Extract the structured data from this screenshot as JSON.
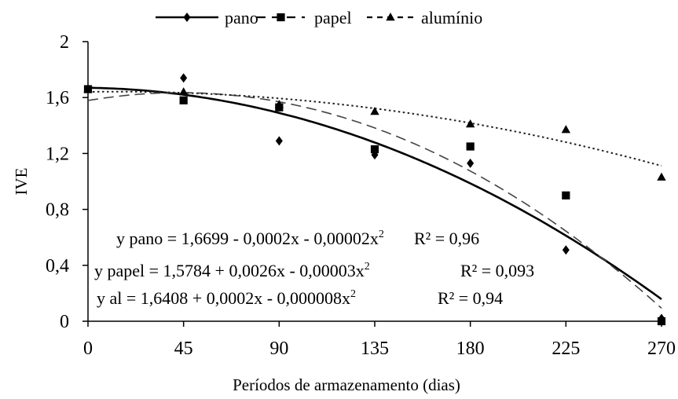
{
  "chart_data": {
    "type": "scatter",
    "xlabel": "Períodos de armazenamento (dias)",
    "ylabel": "IVE",
    "xlim": [
      0,
      270
    ],
    "ylim": [
      0,
      2
    ],
    "x_ticks": [
      0,
      45,
      90,
      135,
      180,
      225,
      270
    ],
    "y_ticks": [
      0,
      0.4,
      0.8,
      1.2,
      1.6,
      2
    ],
    "x_tick_labels": [
      "0",
      "45",
      "90",
      "135",
      "180",
      "225",
      "270"
    ],
    "y_tick_labels": [
      "0",
      "0,4",
      "0,8",
      "1,2",
      "1,6",
      "2"
    ],
    "legend_position": "top",
    "grid": false,
    "x": [
      0,
      45,
      90,
      135,
      180,
      225,
      270
    ],
    "series": [
      {
        "name": "pano",
        "marker": "diamond",
        "line_style": "solid",
        "values": [
          1.66,
          1.74,
          1.29,
          1.19,
          1.13,
          0.51,
          0.02
        ],
        "fit": {
          "a": 1.6699,
          "b": -0.0002,
          "c": -2e-05
        },
        "equation": "y pano = 1,6699 - 0,0002x - 0,00002x",
        "r2": "R² = 0,96"
      },
      {
        "name": "papel",
        "marker": "square",
        "line_style": "dashed",
        "values": [
          1.66,
          1.58,
          1.53,
          1.23,
          1.25,
          0.9,
          0
        ],
        "fit": {
          "a": 1.5784,
          "b": 0.0026,
          "c": -3e-05
        },
        "equation": "y papel = 1,5784 + 0,0026x - 0,00003x",
        "r2": "R² = 0,093"
      },
      {
        "name": "alumínio",
        "marker": "triangle",
        "line_style": "dotted",
        "values": [
          1.66,
          1.64,
          1.55,
          1.5,
          1.41,
          1.37,
          1.03
        ],
        "fit": {
          "a": 1.6408,
          "b": 0.0002,
          "c": -8e-06
        },
        "equation": "y al = 1,6408 + 0,0002x - 0,000008x",
        "r2": "R² = 0,94"
      }
    ]
  }
}
